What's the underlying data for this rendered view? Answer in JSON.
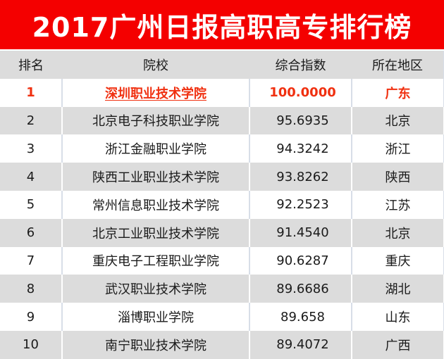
{
  "title": "2017广州日报高职高专排行榜",
  "colors": {
    "title_bg": "#f40000",
    "highlight_text": "#f03010",
    "header_bg": "#dcdcdc",
    "even_row_bg": "#dcdcdc",
    "odd_row_bg": "#ffffff"
  },
  "table": {
    "headers": [
      "排名",
      "院校",
      "综合指数",
      "所在地区"
    ],
    "rows": [
      {
        "rank": "1",
        "school": "深圳职业技术学院",
        "score": "100.0000",
        "region": "广东"
      },
      {
        "rank": "2",
        "school": "北京电子科技职业学院",
        "score": "95.6935",
        "region": "北京"
      },
      {
        "rank": "3",
        "school": "浙江金融职业学院",
        "score": "94.3242",
        "region": "浙江"
      },
      {
        "rank": "4",
        "school": "陕西工业职业技术学院",
        "score": "93.8262",
        "region": "陕西"
      },
      {
        "rank": "5",
        "school": "常州信息职业技术学院",
        "score": "92.2523",
        "region": "江苏"
      },
      {
        "rank": "6",
        "school": "北京工业职业技术学院",
        "score": "91.4540",
        "region": "北京"
      },
      {
        "rank": "7",
        "school": "重庆电子工程职业学院",
        "score": "90.6287",
        "region": "重庆"
      },
      {
        "rank": "8",
        "school": "武汉职业技术学院",
        "score": "89.6686",
        "region": "湖北"
      },
      {
        "rank": "9",
        "school": "淄博职业学院",
        "score": "89.658",
        "region": "山东"
      },
      {
        "rank": "10",
        "school": "南宁职业技术学院",
        "score": "89.4072",
        "region": "广西"
      }
    ]
  }
}
